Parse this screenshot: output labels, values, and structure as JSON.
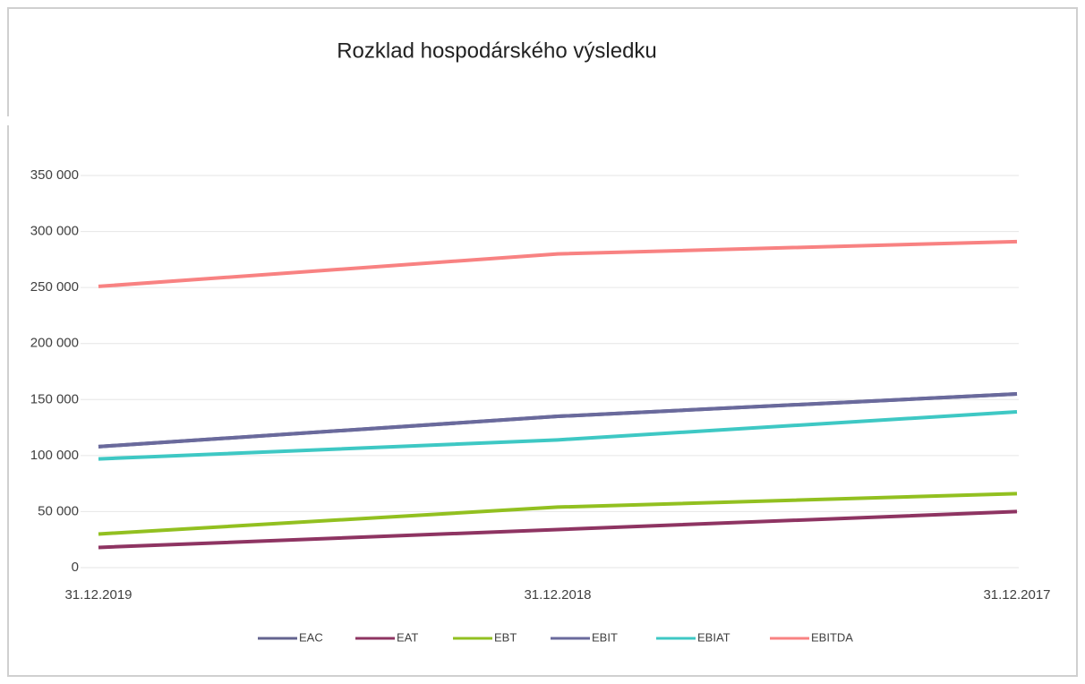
{
  "chart_data": {
    "type": "line",
    "title": "Rozklad hospodárského výsledku",
    "categories": [
      "31.12.2019",
      "31.12.2018",
      "31.12.2017"
    ],
    "series": [
      {
        "name": "EAC",
        "color": "#64648f",
        "values": [
          108000,
          135000,
          155000
        ]
      },
      {
        "name": "EAT",
        "color": "#8e3462",
        "values": [
          18000,
          34000,
          50000
        ]
      },
      {
        "name": "EBT",
        "color": "#92c020",
        "values": [
          30000,
          54000,
          66000
        ]
      },
      {
        "name": "EBIT",
        "color": "#6a6a9c",
        "values": [
          108000,
          135000,
          155000
        ]
      },
      {
        "name": "EBIAT",
        "color": "#3ec8c4",
        "values": [
          97000,
          114000,
          139000
        ]
      },
      {
        "name": "EBITDA",
        "color": "#f88282",
        "values": [
          251000,
          280000,
          291000
        ]
      }
    ],
    "ylim": [
      0,
      350000
    ],
    "yticks": [
      0,
      {
        "value": 50000,
        "label": "50 000"
      },
      {
        "value": 100000,
        "label": "100 000"
      },
      {
        "value": 150000,
        "label": "150 000"
      },
      {
        "value": 200000,
        "label": "200 000"
      },
      {
        "value": 250000,
        "label": "250 000"
      },
      {
        "value": 300000,
        "label": "300 000"
      },
      {
        "value": 350000,
        "label": "350 000"
      }
    ],
    "grid": true,
    "legend": "bottom"
  }
}
